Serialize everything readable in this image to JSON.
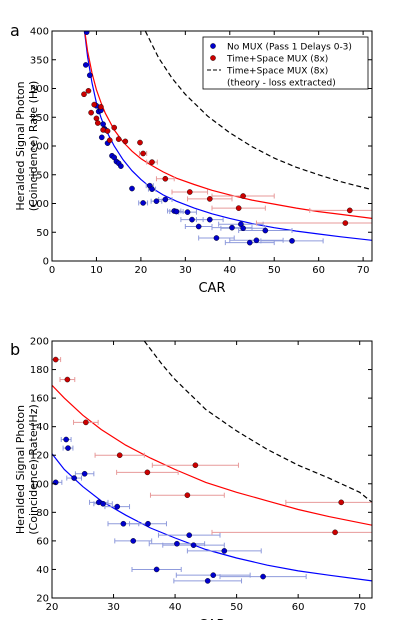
{
  "panels": [
    {
      "letter": "a",
      "chart_data": {
        "type": "scatter",
        "xlabel": "CAR",
        "ylabel_lines": [
          "Heralded Signal Photon",
          "(Coincidence) Rate (Hz)"
        ],
        "xlim": [
          0,
          72
        ],
        "ylim": [
          0,
          400
        ],
        "xticks": [
          0,
          10,
          20,
          30,
          40,
          50,
          60,
          70
        ],
        "yticks": [
          0,
          50,
          100,
          150,
          200,
          250,
          300,
          350,
          400
        ],
        "legend": {
          "placement": "top-right",
          "entries": [
            {
              "label": "No MUX (Pass 1 Delays 0-3)",
              "kind": "marker",
              "color": "#0000cc"
            },
            {
              "label": "Time+Space MUX (8x)",
              "kind": "marker",
              "color": "#cc0000"
            },
            {
              "label": "Time+Space MUX (8x)",
              "label2": "(theory - loss extracted)",
              "kind": "dashed",
              "color": "#000000"
            }
          ]
        },
        "series": [
          {
            "name": "No MUX (Pass 1 Delays 0-3)",
            "color": "#0000cc",
            "points": [
              {
                "x": 7.8,
                "y": 398
              },
              {
                "x": 7.6,
                "y": 341
              },
              {
                "x": 8.5,
                "y": 323
              },
              {
                "x": 10.0,
                "y": 270
              },
              {
                "x": 10.5,
                "y": 260
              },
              {
                "x": 11.0,
                "y": 262
              },
              {
                "x": 11.5,
                "y": 238
              },
              {
                "x": 11.8,
                "y": 230
              },
              {
                "x": 12.0,
                "y": 228
              },
              {
                "x": 11.2,
                "y": 215
              },
              {
                "x": 12.5,
                "y": 205
              },
              {
                "x": 13.5,
                "y": 183
              },
              {
                "x": 14.0,
                "y": 180
              },
              {
                "x": 14.5,
                "y": 173
              },
              {
                "x": 15.0,
                "y": 170
              },
              {
                "x": 15.5,
                "y": 165
              },
              {
                "x": 18.0,
                "y": 126
              },
              {
                "x": 20.5,
                "y": 101,
                "xerr": 1
              },
              {
                "x": 22.0,
                "y": 131,
                "xerr": 0.8
              },
              {
                "x": 22.5,
                "y": 125,
                "xerr": 0.8
              },
              {
                "x": 23.5,
                "y": 104,
                "xerr": 1.2
              },
              {
                "x": 25.5,
                "y": 107,
                "xerr": 1.5
              },
              {
                "x": 27.5,
                "y": 87,
                "xerr": 1.5
              },
              {
                "x": 28.0,
                "y": 86,
                "xerr": 1.5
              },
              {
                "x": 30.5,
                "y": 85,
                "xerr": 2
              },
              {
                "x": 31.5,
                "y": 72,
                "xerr": 2.5
              },
              {
                "x": 33.0,
                "y": 60,
                "xerr": 3
              },
              {
                "x": 35.5,
                "y": 72,
                "xerr": 3
              },
              {
                "x": 37.0,
                "y": 40,
                "xerr": 4
              },
              {
                "x": 40.5,
                "y": 58,
                "xerr": 4.5
              },
              {
                "x": 42.5,
                "y": 64,
                "xerr": 5
              },
              {
                "x": 43.0,
                "y": 57,
                "xerr": 5
              },
              {
                "x": 44.5,
                "y": 32,
                "xerr": 5.5
              },
              {
                "x": 46.0,
                "y": 36,
                "xerr": 6
              },
              {
                "x": 48.0,
                "y": 53,
                "xerr": 6
              },
              {
                "x": 54.0,
                "y": 35,
                "xerr": 7
              }
            ]
          },
          {
            "name": "Time+Space MUX (8x)",
            "color": "#cc0000",
            "points": [
              {
                "x": 7.2,
                "y": 290
              },
              {
                "x": 8.2,
                "y": 296
              },
              {
                "x": 8.8,
                "y": 258
              },
              {
                "x": 9.5,
                "y": 272
              },
              {
                "x": 10.0,
                "y": 248
              },
              {
                "x": 10.3,
                "y": 240
              },
              {
                "x": 11.0,
                "y": 268
              },
              {
                "x": 11.5,
                "y": 228
              },
              {
                "x": 12.5,
                "y": 226
              },
              {
                "x": 13.0,
                "y": 210
              },
              {
                "x": 14.0,
                "y": 232
              },
              {
                "x": 15.0,
                "y": 212
              },
              {
                "x": 16.5,
                "y": 208
              },
              {
                "x": 19.8,
                "y": 206
              },
              {
                "x": 20.5,
                "y": 187,
                "xerr": 0.8
              },
              {
                "x": 22.5,
                "y": 172,
                "xerr": 1.2
              },
              {
                "x": 25.5,
                "y": 143,
                "xerr": 2
              },
              {
                "x": 31.0,
                "y": 120,
                "xerr": 4
              },
              {
                "x": 35.5,
                "y": 108,
                "xerr": 5
              },
              {
                "x": 42.0,
                "y": 92,
                "xerr": 6
              },
              {
                "x": 43.0,
                "y": 113,
                "xerr": 7
              },
              {
                "x": 66.0,
                "y": 66,
                "xerr": 20
              },
              {
                "x": 67.0,
                "y": 88,
                "xerr": 9
              }
            ]
          }
        ],
        "fits": [
          {
            "color": "#0000ff",
            "style": "solid",
            "x": [
              7,
              8,
              9,
              10,
              11,
              12,
              14,
              16,
              18,
              20,
              22,
              25,
              28,
              32,
              36,
              40,
              45,
              50,
              55,
              60,
              65,
              72
            ],
            "y": [
              420,
              355,
              310,
              275,
              250,
              230,
              200,
              176,
              157,
              142,
              129,
              115,
              104,
              92,
              82,
              74,
              65,
              58,
              52,
              47,
              42,
              36
            ]
          },
          {
            "color": "#ff0000",
            "style": "solid",
            "x": [
              7,
              8,
              9,
              10,
              11,
              12,
              14,
              16,
              18,
              20,
              22,
              25,
              28,
              32,
              36,
              40,
              45,
              50,
              55,
              60,
              65,
              72
            ],
            "y": [
              420,
              365,
              327,
              298,
              276,
              257,
              228,
              207,
              191,
              178,
              168,
              155,
              144,
              133,
              123,
              115,
              106,
              99,
              92,
              86,
              81,
              74
            ]
          },
          {
            "color": "#000000",
            "style": "dashed",
            "x": [
              21,
              24,
              27,
              30,
              35,
              40,
              45,
              50,
              55,
              60,
              65,
              70,
              72
            ],
            "y": [
              400,
              353,
              318,
              290,
              252,
              223,
              199,
              179,
              163,
              150,
              138,
              128,
              124
            ]
          }
        ]
      }
    },
    {
      "letter": "b",
      "chart_data": {
        "type": "scatter",
        "xlabel": "CAR",
        "ylabel_lines": [
          "Heralded Signal Photon",
          "(Coincidence) Rate (Hz)"
        ],
        "xlim": [
          20,
          72
        ],
        "ylim": [
          20,
          200
        ],
        "xticks": [
          20,
          30,
          40,
          50,
          60,
          70
        ],
        "yticks": [
          20,
          40,
          60,
          80,
          100,
          120,
          140,
          160,
          180,
          200
        ],
        "series": [
          {
            "name": "No MUX (Pass 1 Delays 0-3)",
            "color": "#0000cc",
            "points": [
              {
                "x": 20.6,
                "y": 101,
                "xerr": 1
              },
              {
                "x": 22.3,
                "y": 131,
                "xerr": 0.8
              },
              {
                "x": 22.6,
                "y": 125,
                "xerr": 0.8
              },
              {
                "x": 23.6,
                "y": 104,
                "xerr": 1.2
              },
              {
                "x": 25.3,
                "y": 107,
                "xerr": 1.5
              },
              {
                "x": 27.6,
                "y": 87,
                "xerr": 1.5
              },
              {
                "x": 28.3,
                "y": 86,
                "xerr": 1.5
              },
              {
                "x": 30.6,
                "y": 84,
                "xerr": 2
              },
              {
                "x": 31.6,
                "y": 72,
                "xerr": 2.5
              },
              {
                "x": 33.2,
                "y": 60,
                "xerr": 3
              },
              {
                "x": 35.6,
                "y": 72,
                "xerr": 3
              },
              {
                "x": 37.0,
                "y": 40,
                "xerr": 4
              },
              {
                "x": 40.3,
                "y": 58,
                "xerr": 4.5
              },
              {
                "x": 42.3,
                "y": 64,
                "xerr": 5
              },
              {
                "x": 43.0,
                "y": 57,
                "xerr": 5
              },
              {
                "x": 45.3,
                "y": 32,
                "xerr": 5.5
              },
              {
                "x": 46.2,
                "y": 36,
                "xerr": 6
              },
              {
                "x": 48.0,
                "y": 53,
                "xerr": 6
              },
              {
                "x": 54.3,
                "y": 35,
                "xerr": 7
              }
            ]
          },
          {
            "name": "Time+Space MUX (8x)",
            "color": "#cc0000",
            "points": [
              {
                "x": 20.6,
                "y": 187,
                "xerr": 0.8
              },
              {
                "x": 22.5,
                "y": 173,
                "xerr": 1.2
              },
              {
                "x": 25.5,
                "y": 143,
                "xerr": 2
              },
              {
                "x": 31.0,
                "y": 120,
                "xerr": 4
              },
              {
                "x": 35.5,
                "y": 108,
                "xerr": 5
              },
              {
                "x": 42.0,
                "y": 92,
                "xerr": 6
              },
              {
                "x": 43.3,
                "y": 113,
                "xerr": 7
              },
              {
                "x": 66.0,
                "y": 66,
                "xerr": 20
              },
              {
                "x": 67.0,
                "y": 87,
                "xerr": 9
              }
            ]
          }
        ],
        "fits": [
          {
            "color": "#0000ff",
            "style": "solid",
            "x": [
              20,
              22,
              25,
              28,
              32,
              36,
              40,
              45,
              50,
              55,
              60,
              65,
              72
            ],
            "y": [
              121,
              110,
              98,
              88,
              78,
              69,
              62,
              54,
              48,
              43,
              39,
              36,
              32
            ]
          },
          {
            "color": "#ff0000",
            "style": "solid",
            "x": [
              20,
              22,
              25,
              28,
              32,
              36,
              40,
              45,
              50,
              55,
              60,
              65,
              72
            ],
            "y": [
              169,
              160,
              148,
              138,
              127,
              118,
              110,
              101,
              94,
              88,
              82,
              77,
              71
            ]
          },
          {
            "color": "#000000",
            "style": "dashed",
            "x": [
              35,
              38,
              40,
              45,
              50,
              55,
              60,
              65,
              70,
              72
            ],
            "y": [
              200,
              183,
              173,
              152,
              137,
              124,
              113,
              104,
              94,
              87
            ]
          }
        ]
      }
    }
  ]
}
